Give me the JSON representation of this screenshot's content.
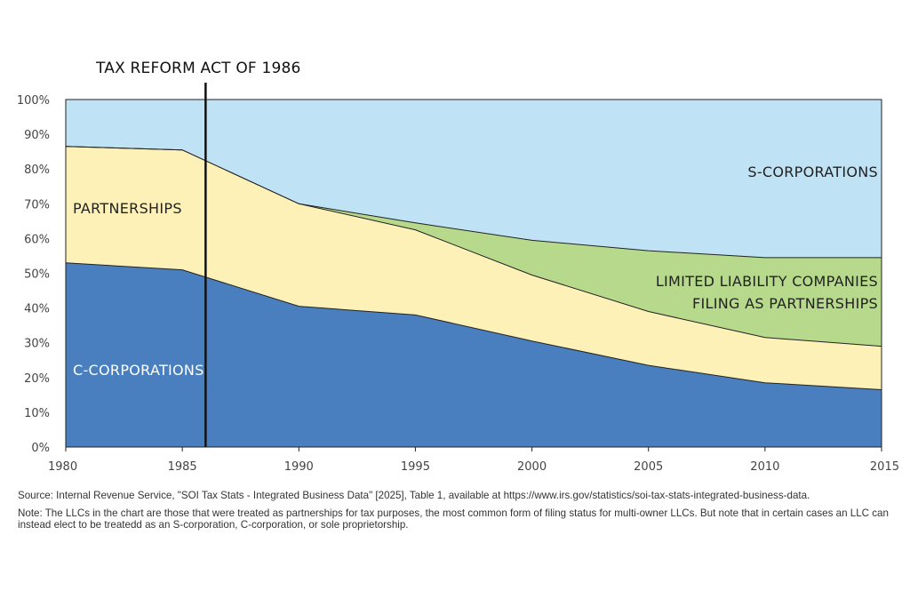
{
  "chart_data": {
    "type": "area",
    "stacked": true,
    "normalized": true,
    "x": [
      1980,
      1985,
      1990,
      1995,
      2000,
      2005,
      2010,
      2015
    ],
    "series": [
      {
        "name": "C-CORPORATIONS",
        "values": [
          53,
          51,
          40.5,
          38,
          30.5,
          23.5,
          18.5,
          16.5
        ]
      },
      {
        "name": "PARTNERSHIPS",
        "values": [
          33.5,
          34.5,
          29.5,
          24.5,
          19,
          15.5,
          13,
          12.5
        ]
      },
      {
        "name": "LIMITED LIABILITY COMPANIES FILING AS PARTNERSHIPS",
        "values": [
          0,
          0,
          0,
          2,
          10,
          17.5,
          23,
          25.5
        ]
      },
      {
        "name": "S-CORPORATIONS",
        "values": [
          13.5,
          14.5,
          30,
          35.5,
          40.5,
          43.5,
          45.5,
          45.5
        ]
      }
    ],
    "colors": [
      "#4a7fbf",
      "#fdf1b8",
      "#b7d98c",
      "#bfe2f5"
    ],
    "label_colors": [
      "#ffffff",
      "#222222",
      "#222222",
      "#222222"
    ],
    "label_lines": [
      [
        "C-CORPORATIONS"
      ],
      [
        "PARTNERSHIPS"
      ],
      [
        "LIMITED LIABILITY COMPANIES",
        "FILING AS PARTNERSHIPS"
      ],
      [
        "S-CORPORATIONS"
      ]
    ],
    "x_tick_labels": [
      "1980",
      "1985",
      "1990",
      "1995",
      "2000",
      "2005",
      "2010",
      "2015"
    ],
    "y_tick_labels": [
      "0%",
      "10%",
      "20%",
      "30%",
      "40%",
      "50%",
      "60%",
      "70%",
      "80%",
      "90%",
      "100%"
    ],
    "ylim": [
      0,
      100
    ],
    "xlim": [
      1980,
      2015
    ],
    "annotation": {
      "label": "TAX REFORM ACT OF 1986",
      "x": 1986
    }
  },
  "notes": {
    "source": "Source: Internal Revenue Service, \"SOI Tax Stats - Integrated Business Data\" [2025], Table 1, available at https://www.irs.gov/statistics/soi-tax-stats-integrated-business-data.",
    "note": "Note: The LLCs in the chart are those that were treated as partnerships for tax purposes, the most common form of filing status for multi-owner LLCs. But note that in certain cases an LLC can instead elect to be treatedd as an S-corporation, C-corporation, or sole proprietorship."
  }
}
